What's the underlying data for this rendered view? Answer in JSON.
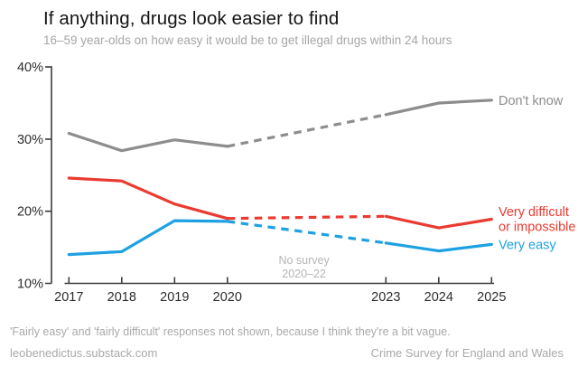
{
  "header": {
    "title": "If anything, drugs look easier to find",
    "subtitle": "16–59 year-olds on how easy it would be to get illegal drugs within 24 hours"
  },
  "chart_data": {
    "type": "line",
    "title": "If anything, drugs look easier to find",
    "subtitle": "16–59 year-olds on how easy it would be to get illegal drugs within 24 hours",
    "x": [
      2017,
      2018,
      2019,
      2020,
      2023,
      2024,
      2025
    ],
    "x_tick_labels": [
      "2017",
      "2018",
      "2019",
      "2020",
      "2023",
      "2024",
      "2025"
    ],
    "x_range": [
      2017,
      2025
    ],
    "y_axis": {
      "min": 10,
      "max": 40,
      "ticks": [
        10,
        20,
        30,
        40
      ],
      "tick_labels": [
        "10%",
        "20%",
        "30%",
        "40%"
      ],
      "unit": "%"
    },
    "grid": false,
    "legend_position": "right-end-of-line-labels",
    "gap": {
      "from": 2020,
      "to": 2023,
      "style": "dashed",
      "reason": "No survey 2020–22"
    },
    "series": [
      {
        "name": "Don't know",
        "label_lines": [
          "Don't know"
        ],
        "color": "#8d8d8d",
        "values": [
          30.8,
          28.4,
          29.9,
          29.0,
          33.4,
          35.0,
          35.4
        ]
      },
      {
        "name": "Very difficult or impossible",
        "label_lines": [
          "Very difficult",
          "or impossible"
        ],
        "color": "#ea3a31",
        "values": [
          24.6,
          24.2,
          21.0,
          19.0,
          19.3,
          17.7,
          18.9
        ]
      },
      {
        "name": "Very easy",
        "label_lines": [
          "Very easy"
        ],
        "color": "#1ea1e2",
        "values": [
          14.0,
          14.4,
          18.7,
          18.6,
          15.6,
          14.5,
          15.4
        ]
      }
    ],
    "annotation": {
      "line1": "No survey",
      "line2": "2020–22",
      "x_year": 2021.45
    }
  },
  "footer": {
    "note": "'Fairly easy' and 'fairly difficult' responses not shown, because I think they're a bit vague.",
    "left": "leobenedictus.substack.com",
    "right": "Crime Survey for England and Wales"
  },
  "colors": {
    "dont_know": "#8d8d8d",
    "very_difficult": "#ea3a31",
    "very_easy": "#1ea1e2",
    "axis": "#3c3c3c",
    "title_text": "#141414",
    "muted_text": "#a9a9a9",
    "annotation_text": "#b5b5b5"
  }
}
